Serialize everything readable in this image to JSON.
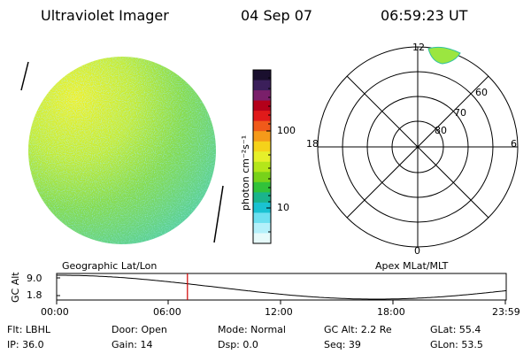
{
  "header": {
    "instrument": "Ultraviolet Imager",
    "date": "04 Sep 07",
    "time": "06:59:23 UT"
  },
  "colorbar": {
    "unit_label": "photon cm⁻²s⁻¹",
    "ticks": [
      "100",
      "10"
    ],
    "colors": [
      "#1a0f2e",
      "#3b1f5a",
      "#7a1f6a",
      "#b4001a",
      "#e01a1a",
      "#f05a1a",
      "#f59a1a",
      "#f5d21a",
      "#e6f02a",
      "#b4e61a",
      "#78d21a",
      "#32c23a",
      "#1ab48c",
      "#1ac2d2",
      "#6ee0f0",
      "#b4f0fa",
      "#e6fafa"
    ]
  },
  "polar": {
    "mlt_labels": [
      "12",
      "18",
      "6",
      "0"
    ],
    "lat_labels": [
      "60",
      "70",
      "80"
    ]
  },
  "timeline": {
    "ylabel": "GC Alt",
    "ytick_top": "9.0",
    "ytick_bottom": "1.8",
    "left_caption": "Geographic Lat/Lon",
    "right_caption": "Apex  MLat/MLT",
    "xticks": [
      "00:00",
      "06:00",
      "12:00",
      "18:00",
      "23:59"
    ],
    "current_time_fraction": 0.291
  },
  "status": {
    "flt": "Flt:  LBHL",
    "ip": "IP:  36.0",
    "door": "Door:  Open",
    "gain": "Gain:  14",
    "mode": "Mode:  Normal",
    "dsp": "Dsp:      0.0",
    "gcalt": "GC Alt:  2.2 Re",
    "seq": "Seq:  39",
    "glat": "GLat:    55.4",
    "glon": "GLon:    53.5"
  }
}
